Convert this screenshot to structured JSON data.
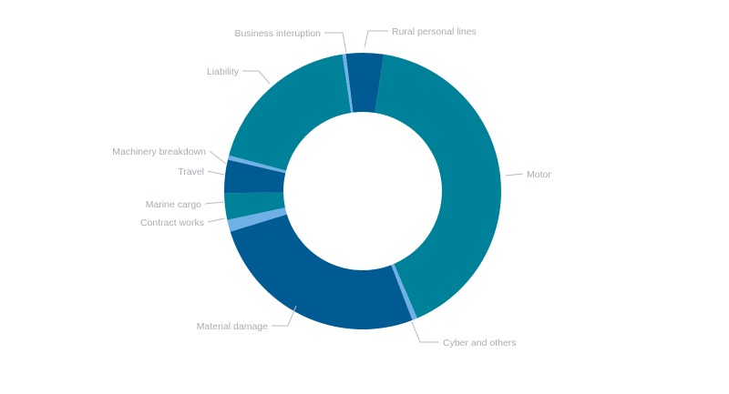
{
  "chart_data": {
    "type": "pie",
    "variant": "donut",
    "title": "",
    "start_angle_deg": -7,
    "colors": {
      "teal": "#00819a",
      "dark_blue": "#005b93",
      "light_blue": "#6fb1e6"
    },
    "slices": [
      {
        "label": "Rural personal lines",
        "value": 4.4,
        "color": "#005b93",
        "label_side": "right"
      },
      {
        "label": "Motor",
        "value": 41.1,
        "color": "#00819a",
        "label_side": "right"
      },
      {
        "label": "Cyber and others",
        "value": 0.6,
        "color": "#6fb1e6",
        "label_side": "right"
      },
      {
        "label": "Material damage",
        "value": 26.1,
        "color": "#005b93",
        "label_side": "left"
      },
      {
        "label": "Contract works",
        "value": 1.4,
        "color": "#6fb1e6",
        "label_side": "left"
      },
      {
        "label": "Marine cargo",
        "value": 3.1,
        "color": "#00819a",
        "label_side": "left"
      },
      {
        "label": "Travel",
        "value": 3.9,
        "color": "#005b93",
        "label_side": "left"
      },
      {
        "label": "Machinery breakdown",
        "value": 0.5,
        "color": "#6fb1e6",
        "label_side": "left"
      },
      {
        "label": "Liability",
        "value": 18.5,
        "color": "#00819a",
        "label_side": "left"
      },
      {
        "label": "Business interuption",
        "value": 0.4,
        "color": "#6fb1e6",
        "label_side": "left"
      }
    ],
    "units": "share of total (approx. %)",
    "legend": "none (leader-line labels)"
  },
  "labels": {
    "rural": "Rural personal lines",
    "motor": "Motor",
    "cyber": "Cyber and others",
    "material": "Material damage",
    "contract": "Contract works",
    "marine": "Marine cargo",
    "travel": "Travel",
    "machinery": "Machinery breakdown",
    "liability": "Liability",
    "business": "Business interuption"
  }
}
